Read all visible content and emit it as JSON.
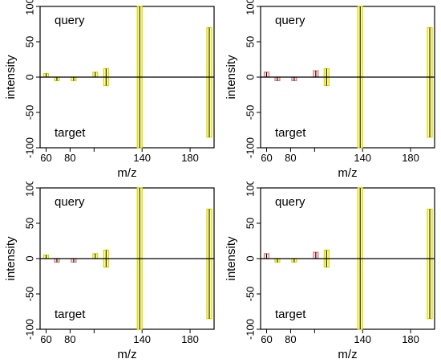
{
  "chart_data": [
    {
      "type": "bar",
      "xlabel": "m/z",
      "ylabel": "intensity",
      "annotations": {
        "top": "query",
        "bottom": "target"
      },
      "xlim": [
        55,
        200
      ],
      "ylim": [
        -100,
        100
      ],
      "xticks": [
        60,
        80,
        100,
        140,
        180
      ],
      "xtick_labels": [
        "60",
        "80",
        "",
        "140",
        "180"
      ],
      "yticks": [
        -100,
        -50,
        0,
        50,
        100
      ],
      "ytick_labels": [
        "-100",
        "-50",
        "0",
        "50",
        "100"
      ],
      "grid": false,
      "query": [
        {
          "mz": 60,
          "intensity": 5,
          "match": true
        },
        {
          "mz": 69,
          "intensity": -5,
          "match": true
        },
        {
          "mz": 83,
          "intensity": -5,
          "match": true
        },
        {
          "mz": 101,
          "intensity": 7,
          "match": true
        },
        {
          "mz": 110,
          "intensity": 12,
          "match": true
        },
        {
          "mz": 138,
          "intensity": 100,
          "match": true
        },
        {
          "mz": 196,
          "intensity": 70,
          "match": true
        }
      ],
      "target": [
        {
          "mz": 110,
          "intensity": -12,
          "match": true
        },
        {
          "mz": 138,
          "intensity": -100,
          "match": true
        },
        {
          "mz": 196,
          "intensity": -85,
          "match": true
        }
      ]
    },
    {
      "type": "bar",
      "xlabel": "m/z",
      "ylabel": "intensity",
      "annotations": {
        "top": "query",
        "bottom": "target"
      },
      "xlim": [
        55,
        200
      ],
      "ylim": [
        -100,
        100
      ],
      "xticks": [
        60,
        80,
        100,
        140,
        180
      ],
      "xtick_labels": [
        "60",
        "80",
        "",
        "140",
        "180"
      ],
      "yticks": [
        -100,
        -50,
        0,
        50,
        100
      ],
      "ytick_labels": [
        "-100",
        "-50",
        "0",
        "50",
        "100"
      ],
      "grid": false,
      "query": [
        {
          "mz": 60,
          "intensity": 7,
          "match": false
        },
        {
          "mz": 69,
          "intensity": -5,
          "match": false
        },
        {
          "mz": 83,
          "intensity": -5,
          "match": false
        },
        {
          "mz": 101,
          "intensity": 9,
          "match": false
        },
        {
          "mz": 110,
          "intensity": 12,
          "match": true
        },
        {
          "mz": 138,
          "intensity": 100,
          "match": true
        },
        {
          "mz": 196,
          "intensity": 70,
          "match": true
        }
      ],
      "target": [
        {
          "mz": 110,
          "intensity": -12,
          "match": true
        },
        {
          "mz": 138,
          "intensity": -100,
          "match": true
        },
        {
          "mz": 196,
          "intensity": -85,
          "match": true
        }
      ]
    },
    {
      "type": "bar",
      "xlabel": "m/z",
      "ylabel": "intensity",
      "annotations": {
        "top": "query",
        "bottom": "target"
      },
      "xlim": [
        55,
        200
      ],
      "ylim": [
        -100,
        100
      ],
      "xticks": [
        60,
        80,
        100,
        140,
        180
      ],
      "xtick_labels": [
        "60",
        "80",
        "",
        "140",
        "180"
      ],
      "yticks": [
        -100,
        -50,
        0,
        50,
        100
      ],
      "ytick_labels": [
        "-100",
        "-50",
        "0",
        "50",
        "100"
      ],
      "grid": false,
      "query": [
        {
          "mz": 60,
          "intensity": 5,
          "match": true
        },
        {
          "mz": 69,
          "intensity": -5,
          "match": false
        },
        {
          "mz": 83,
          "intensity": -5,
          "match": false
        },
        {
          "mz": 101,
          "intensity": 7,
          "match": true
        },
        {
          "mz": 110,
          "intensity": 12,
          "match": true
        },
        {
          "mz": 138,
          "intensity": 100,
          "match": true
        },
        {
          "mz": 196,
          "intensity": 70,
          "match": true
        }
      ],
      "target": [
        {
          "mz": 110,
          "intensity": -12,
          "match": true
        },
        {
          "mz": 138,
          "intensity": -100,
          "match": true
        },
        {
          "mz": 196,
          "intensity": -85,
          "match": true
        }
      ]
    },
    {
      "type": "bar",
      "xlabel": "m/z",
      "ylabel": "intensity",
      "annotations": {
        "top": "query",
        "bottom": "target"
      },
      "xlim": [
        55,
        200
      ],
      "ylim": [
        -100,
        100
      ],
      "xticks": [
        60,
        80,
        100,
        140,
        180
      ],
      "xtick_labels": [
        "60",
        "80",
        "",
        "140",
        "180"
      ],
      "yticks": [
        -100,
        -50,
        0,
        50,
        100
      ],
      "ytick_labels": [
        "-100",
        "-50",
        "0",
        "50",
        "100"
      ],
      "grid": false,
      "query": [
        {
          "mz": 60,
          "intensity": 7,
          "match": false
        },
        {
          "mz": 69,
          "intensity": -5,
          "match": true
        },
        {
          "mz": 83,
          "intensity": -5,
          "match": true
        },
        {
          "mz": 101,
          "intensity": 9,
          "match": false
        },
        {
          "mz": 110,
          "intensity": 12,
          "match": true
        },
        {
          "mz": 138,
          "intensity": 100,
          "match": true
        },
        {
          "mz": 196,
          "intensity": 70,
          "match": true
        }
      ],
      "target": [
        {
          "mz": 110,
          "intensity": -12,
          "match": true
        },
        {
          "mz": 138,
          "intensity": -100,
          "match": true
        },
        {
          "mz": 196,
          "intensity": -85,
          "match": true
        }
      ]
    }
  ],
  "colors": {
    "match_fill": "#ffff99",
    "match_stroke": "#d8d800",
    "mismatch_fill": "#ffd9d9",
    "mismatch_stroke": "#d97a7a",
    "peak_line": "#000000",
    "axis": "#000000"
  }
}
